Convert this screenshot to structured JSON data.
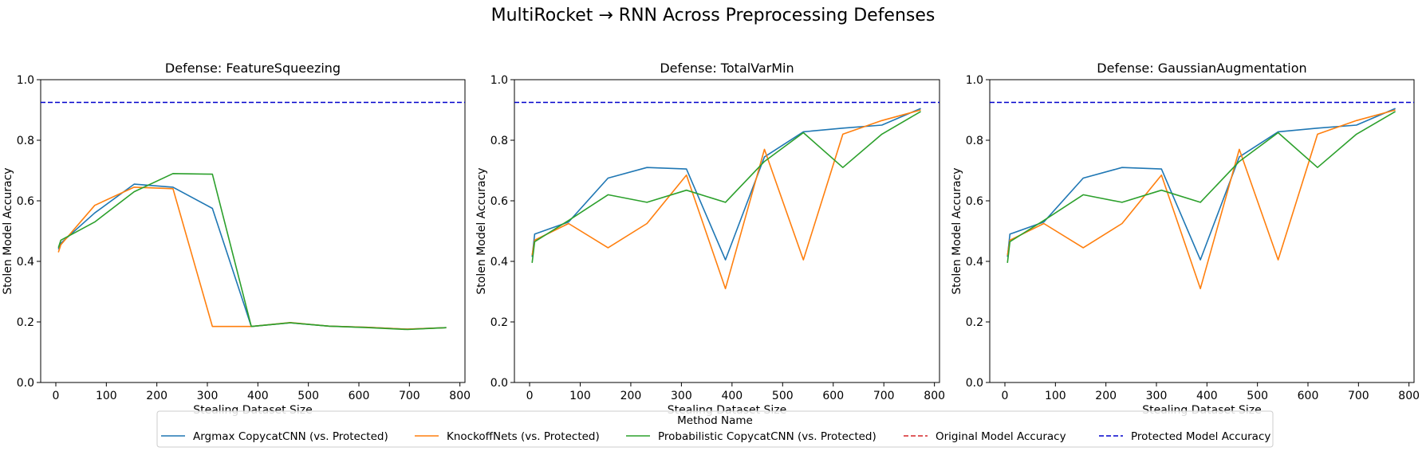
{
  "figure": {
    "suptitle": "MultiRocket → RNN Across Preprocessing Defenses"
  },
  "chart_data": [
    {
      "type": "line",
      "title": "Defense: FeatureSqueezing",
      "xlabel": "Stealing Dataset Size",
      "ylabel": "Stolen Model Accuracy",
      "xlim": [
        -30,
        810
      ],
      "ylim": [
        0.0,
        1.0
      ],
      "xticks": [
        0,
        100,
        200,
        300,
        400,
        500,
        600,
        700,
        800
      ],
      "yticks": [
        0.0,
        0.2,
        0.4,
        0.6,
        0.8,
        1.0
      ],
      "series": [
        {
          "name": "Argmax CopycatCNN (vs. Protected)",
          "color": "#1f77b4",
          "x": [
            5,
            10,
            77,
            155,
            232,
            310,
            387,
            464,
            541,
            619,
            696,
            773
          ],
          "y": [
            0.44,
            0.46,
            0.56,
            0.655,
            0.645,
            0.575,
            0.185,
            0.197,
            0.186,
            0.182,
            0.176,
            0.181
          ]
        },
        {
          "name": "KnockoffNets (vs. Protected)",
          "color": "#ff7f0e",
          "x": [
            5,
            10,
            77,
            155,
            232,
            310,
            387,
            464,
            541,
            619,
            696,
            773
          ],
          "y": [
            0.43,
            0.455,
            0.585,
            0.645,
            0.64,
            0.185,
            0.185,
            0.198,
            0.186,
            0.182,
            0.176,
            0.181
          ]
        },
        {
          "name": "Probabilistic CopycatCNN (vs. Protected)",
          "color": "#2ca02c",
          "x": [
            5,
            10,
            77,
            155,
            232,
            310,
            387,
            464,
            541,
            619,
            696,
            773
          ],
          "y": [
            0.445,
            0.47,
            0.53,
            0.63,
            0.69,
            0.688,
            0.185,
            0.197,
            0.186,
            0.181,
            0.175,
            0.181
          ]
        }
      ],
      "reference_lines": [
        {
          "name": "Protected Model Accuracy",
          "color": "#0000cc",
          "y": 0.925
        }
      ]
    },
    {
      "type": "line",
      "title": "Defense: TotalVarMin",
      "xlabel": "Stealing Dataset Size",
      "ylabel": "Stolen Model Accuracy",
      "xlim": [
        -30,
        810
      ],
      "ylim": [
        0.0,
        1.0
      ],
      "xticks": [
        0,
        100,
        200,
        300,
        400,
        500,
        600,
        700,
        800
      ],
      "yticks": [
        0.0,
        0.2,
        0.4,
        0.6,
        0.8,
        1.0
      ],
      "series": [
        {
          "name": "Argmax CopycatCNN (vs. Protected)",
          "color": "#1f77b4",
          "x": [
            5,
            10,
            77,
            155,
            232,
            310,
            387,
            464,
            541,
            619,
            696,
            773
          ],
          "y": [
            0.415,
            0.49,
            0.53,
            0.675,
            0.71,
            0.705,
            0.405,
            0.745,
            0.828,
            0.84,
            0.85,
            0.905
          ]
        },
        {
          "name": "KnockoffNets (vs. Protected)",
          "color": "#ff7f0e",
          "x": [
            5,
            10,
            77,
            155,
            232,
            310,
            387,
            464,
            541,
            619,
            696,
            773
          ],
          "y": [
            0.42,
            0.47,
            0.525,
            0.445,
            0.525,
            0.685,
            0.31,
            0.77,
            0.405,
            0.82,
            0.865,
            0.9
          ]
        },
        {
          "name": "Probabilistic CopycatCNN (vs. Protected)",
          "color": "#2ca02c",
          "x": [
            5,
            10,
            77,
            155,
            232,
            310,
            387,
            464,
            541,
            619,
            696,
            773
          ],
          "y": [
            0.395,
            0.465,
            0.535,
            0.62,
            0.595,
            0.635,
            0.595,
            0.73,
            0.825,
            0.71,
            0.82,
            0.895
          ]
        }
      ],
      "reference_lines": [
        {
          "name": "Protected Model Accuracy",
          "color": "#0000cc",
          "y": 0.925
        }
      ]
    },
    {
      "type": "line",
      "title": "Defense: GaussianAugmentation",
      "xlabel": "Stealing Dataset Size",
      "ylabel": "Stolen Model Accuracy",
      "xlim": [
        -30,
        810
      ],
      "ylim": [
        0.0,
        1.0
      ],
      "xticks": [
        0,
        100,
        200,
        300,
        400,
        500,
        600,
        700,
        800
      ],
      "yticks": [
        0.0,
        0.2,
        0.4,
        0.6,
        0.8,
        1.0
      ],
      "series": [
        {
          "name": "Argmax CopycatCNN (vs. Protected)",
          "color": "#1f77b4",
          "x": [
            5,
            10,
            77,
            155,
            232,
            310,
            387,
            464,
            541,
            619,
            696,
            773
          ],
          "y": [
            0.415,
            0.49,
            0.53,
            0.675,
            0.71,
            0.705,
            0.405,
            0.745,
            0.828,
            0.84,
            0.85,
            0.905
          ]
        },
        {
          "name": "KnockoffNets (vs. Protected)",
          "color": "#ff7f0e",
          "x": [
            5,
            10,
            77,
            155,
            232,
            310,
            387,
            464,
            541,
            619,
            696,
            773
          ],
          "y": [
            0.42,
            0.47,
            0.525,
            0.445,
            0.525,
            0.685,
            0.31,
            0.77,
            0.405,
            0.82,
            0.865,
            0.9
          ]
        },
        {
          "name": "Probabilistic CopycatCNN (vs. Protected)",
          "color": "#2ca02c",
          "x": [
            5,
            10,
            77,
            155,
            232,
            310,
            387,
            464,
            541,
            619,
            696,
            773
          ],
          "y": [
            0.395,
            0.465,
            0.535,
            0.62,
            0.595,
            0.635,
            0.595,
            0.73,
            0.825,
            0.71,
            0.82,
            0.895
          ]
        }
      ],
      "reference_lines": [
        {
          "name": "Protected Model Accuracy",
          "color": "#0000cc",
          "y": 0.925
        }
      ]
    }
  ],
  "legend": {
    "title": "Method Name",
    "placement": "bottom-center",
    "entries": [
      {
        "label": "Argmax CopycatCNN (vs. Protected)",
        "color": "#1f77b4",
        "style": "solid"
      },
      {
        "label": "KnockoffNets (vs. Protected)",
        "color": "#ff7f0e",
        "style": "solid"
      },
      {
        "label": "Probabilistic CopycatCNN (vs. Protected)",
        "color": "#2ca02c",
        "style": "solid"
      },
      {
        "label": "Original Model Accuracy",
        "color": "#d62728",
        "style": "dashed"
      },
      {
        "label": "Protected Model Accuracy",
        "color": "#0000cc",
        "style": "dashed"
      }
    ]
  }
}
